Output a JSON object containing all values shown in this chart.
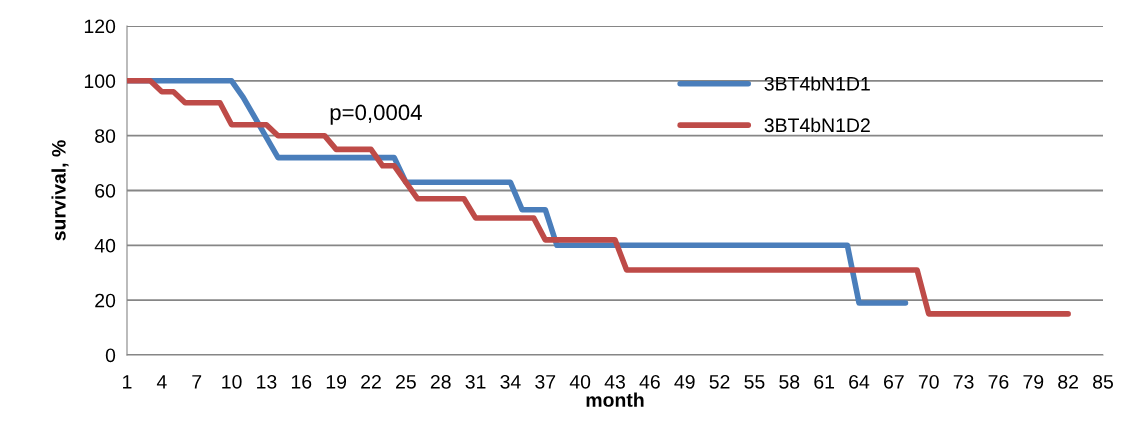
{
  "chart_data": {
    "type": "line",
    "xlabel": "month",
    "ylabel": "survival, %",
    "xlim": [
      1,
      85
    ],
    "xticks": [
      1,
      4,
      7,
      10,
      13,
      16,
      19,
      22,
      25,
      28,
      31,
      34,
      37,
      40,
      43,
      46,
      49,
      52,
      55,
      58,
      61,
      64,
      67,
      70,
      73,
      76,
      79,
      82,
      85
    ],
    "ylim": [
      0,
      120
    ],
    "yticks": [
      0,
      20,
      40,
      60,
      80,
      100,
      120
    ],
    "grid": "y",
    "legend": "top right",
    "marker": "none",
    "line_style": "solid",
    "annotations": [
      "p=0,0004"
    ],
    "series": [
      {
        "name": "3BT4bN1D1",
        "color": "#4a7ebb",
        "x": [
          1,
          10,
          11,
          14,
          24,
          25,
          34,
          35,
          37,
          38,
          63,
          64,
          68
        ],
        "values": [
          100,
          100,
          94,
          72,
          72,
          63,
          63,
          53,
          53,
          40,
          40,
          19,
          19
        ]
      },
      {
        "name": "3BT4bN1D2",
        "color": "#be4b48",
        "x": [
          1,
          3,
          4,
          5,
          6,
          9,
          10,
          13,
          14,
          18,
          19,
          22,
          23,
          24,
          26,
          30,
          31,
          36,
          37,
          43,
          44,
          69,
          70,
          82
        ],
        "values": [
          100,
          100,
          96,
          96,
          92,
          92,
          84,
          84,
          80,
          80,
          75,
          75,
          69,
          69,
          57,
          57,
          50,
          50,
          42,
          42,
          31,
          31,
          15,
          15
        ]
      }
    ]
  }
}
